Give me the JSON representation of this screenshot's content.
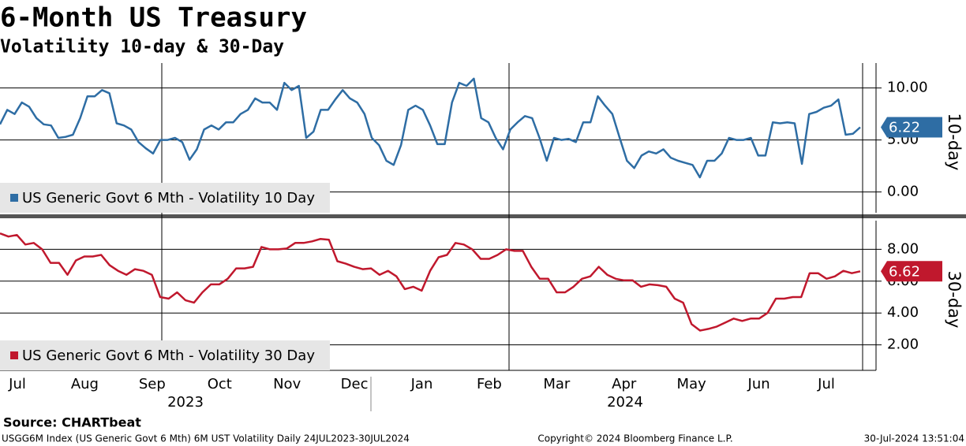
{
  "title": "6-Month US Treasury",
  "subtitle": "Volatility 10-day & 30-Day",
  "source": "Source: CHARTbeat",
  "footer": {
    "left": "USGG6M Index (US Generic Govt 6 Mth) 6M UST Volatility  Daily 24JUL2023-30JUL2024",
    "center": "Copyright© 2024 Bloomberg Finance L.P.",
    "right": "30-Jul-2024 13:51:04"
  },
  "x_axis": {
    "categories": [
      "Jul",
      "Aug",
      "Sep",
      "Oct",
      "Nov",
      "Dec",
      "Jan",
      "Feb",
      "Mar",
      "Apr",
      "May",
      "Jun",
      "Jul"
    ],
    "years": [
      "2023",
      "2024"
    ]
  },
  "chart_data": [
    {
      "type": "line",
      "y_label": "10-day",
      "ylim": [
        -2,
        12.4
      ],
      "grid": true,
      "legend": "lower left",
      "yticks": [
        {
          "value": 0,
          "label": "0.00"
        },
        {
          "value": 5,
          "label": "5.00"
        },
        {
          "value": 10,
          "label": "10.00"
        }
      ],
      "series": [
        {
          "name": "US Generic Govt 6 Mth - Volatility 10 Day",
          "color": "#2e6da4",
          "values": [
            6.5,
            7.9,
            7.5,
            8.6,
            8.2,
            7.1,
            6.5,
            6.4,
            5.2,
            5.3,
            5.5,
            7.1,
            9.2,
            9.2,
            9.8,
            9.5,
            6.6,
            6.4,
            6.0,
            4.8,
            4.2,
            3.7,
            5.0,
            5.0,
            5.2,
            4.8,
            3.1,
            4.1,
            6.0,
            6.4,
            6.0,
            6.7,
            6.7,
            7.5,
            7.9,
            9.0,
            8.6,
            8.6,
            7.9,
            10.5,
            9.8,
            10.2,
            5.2,
            5.8,
            7.9,
            7.9,
            8.9,
            9.8,
            9.0,
            8.6,
            7.5,
            5.2,
            4.5,
            3.0,
            2.6,
            4.5,
            7.9,
            8.3,
            7.9,
            6.4,
            4.6,
            4.6,
            8.6,
            10.5,
            10.2,
            10.9,
            7.1,
            6.7,
            5.2,
            4.1,
            6.0,
            6.7,
            7.3,
            7.1,
            5.2,
            3.0,
            5.2,
            5.0,
            5.1,
            4.8,
            6.7,
            6.7,
            9.2,
            8.3,
            7.5,
            5.2,
            3.0,
            2.3,
            3.5,
            3.9,
            3.7,
            4.1,
            3.3,
            3.0,
            2.8,
            2.6,
            1.4,
            3.0,
            3.0,
            3.7,
            5.2,
            5.0,
            5.0,
            5.2,
            3.5,
            3.5,
            6.7,
            6.6,
            6.7,
            6.6,
            2.7,
            7.5,
            7.7,
            8.1,
            8.3,
            8.9,
            5.5,
            5.6,
            6.22
          ]
        }
      ]
    },
    {
      "type": "line",
      "y_label": "30-day",
      "ylim": [
        0.4,
        9.8
      ],
      "grid": true,
      "legend": "lower left",
      "yticks": [
        {
          "value": 2,
          "label": "2.00"
        },
        {
          "value": 4,
          "label": "4.00"
        },
        {
          "value": 6,
          "label": "6.00"
        },
        {
          "value": 8,
          "label": "8.00"
        }
      ],
      "series": [
        {
          "name": "US Generic Govt 6 Mth - Volatility 30 Day",
          "color": "#c0182d",
          "values": [
            9.0,
            8.8,
            8.9,
            8.3,
            8.4,
            8.0,
            7.15,
            7.15,
            6.4,
            7.3,
            7.55,
            7.55,
            7.65,
            7.0,
            6.65,
            6.4,
            6.75,
            6.65,
            6.4,
            5.0,
            4.9,
            5.3,
            4.8,
            4.65,
            5.3,
            5.8,
            5.8,
            6.15,
            6.8,
            6.8,
            6.9,
            8.15,
            8.0,
            8.0,
            8.05,
            8.4,
            8.4,
            8.5,
            8.65,
            8.6,
            7.25,
            7.1,
            6.9,
            6.75,
            6.8,
            6.4,
            6.65,
            6.3,
            5.5,
            5.65,
            5.4,
            6.65,
            7.5,
            7.65,
            8.4,
            8.3,
            8.0,
            7.4,
            7.4,
            7.65,
            8.0,
            7.9,
            7.9,
            6.9,
            6.15,
            6.15,
            5.3,
            5.3,
            5.65,
            6.15,
            6.3,
            6.9,
            6.4,
            6.15,
            6.05,
            6.05,
            5.65,
            5.8,
            5.75,
            5.65,
            4.9,
            4.65,
            3.3,
            2.9,
            3.0,
            3.15,
            3.4,
            3.65,
            3.5,
            3.65,
            3.65,
            4.0,
            4.9,
            4.9,
            5.0,
            5.0,
            6.5,
            6.5,
            6.15,
            6.3,
            6.65,
            6.5,
            6.62
          ]
        }
      ]
    }
  ]
}
